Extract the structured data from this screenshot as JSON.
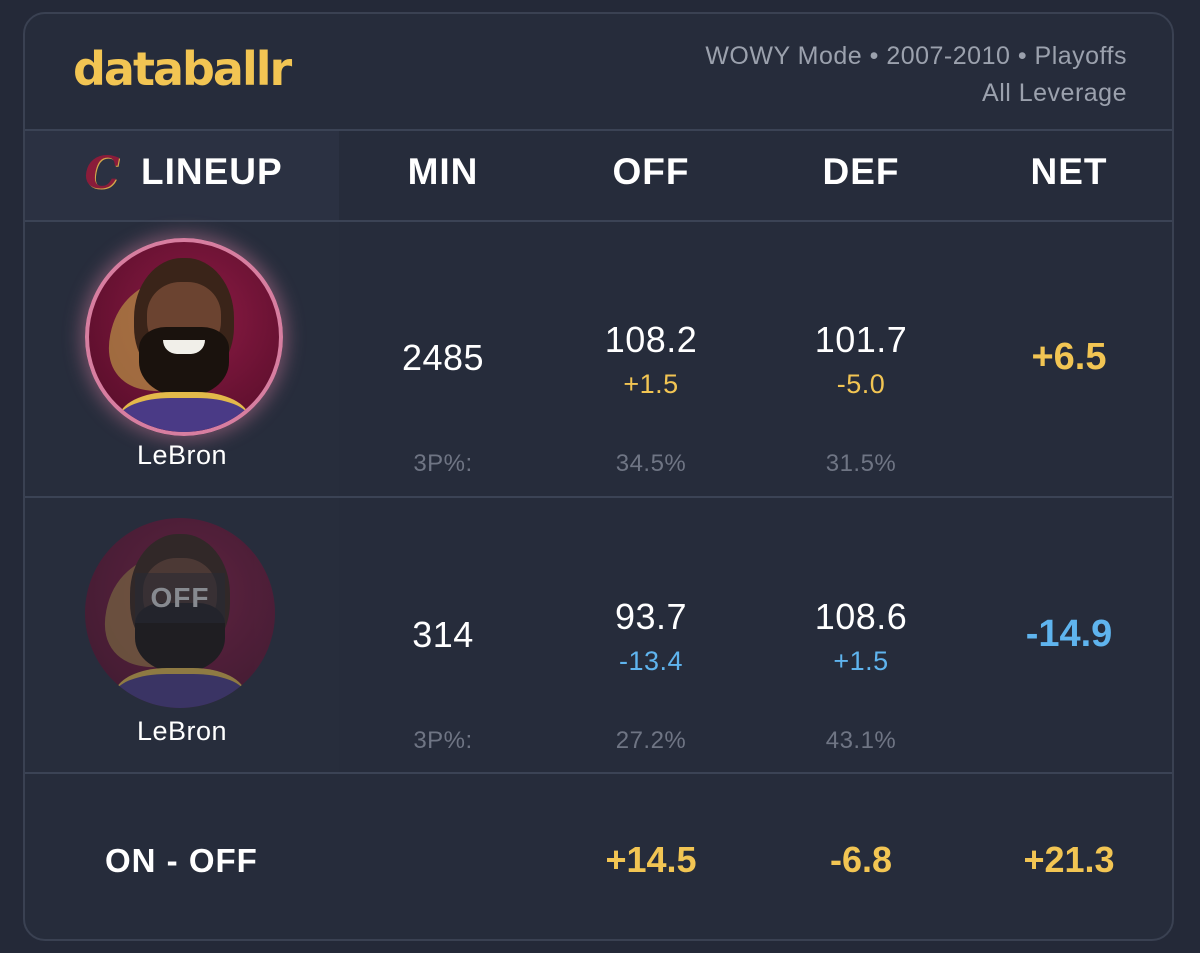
{
  "brand": {
    "name": "databallr"
  },
  "filters": {
    "line1": "WOWY Mode • 2007-2010 • Playoffs",
    "line2": "All Leverage"
  },
  "columns": {
    "lineup": "LINEUP",
    "min": "MIN",
    "off": "OFF",
    "def": "DEF",
    "net": "NET"
  },
  "team_logo": "cavaliers-c-logo-icon",
  "rows": [
    {
      "player": "LeBron",
      "status": "on",
      "min": "2485",
      "off": "108.2",
      "off_delta": "+1.5",
      "def": "101.7",
      "def_delta": "-5.0",
      "net": "+6.5",
      "three_label": "3P%:",
      "off_3p": "34.5%",
      "def_3p": "31.5%"
    },
    {
      "player": "LeBron",
      "status": "off",
      "badge": "OFF",
      "min": "314",
      "off": "93.7",
      "off_delta": "-13.4",
      "def": "108.6",
      "def_delta": "+1.5",
      "net": "-14.9",
      "three_label": "3P%:",
      "off_3p": "27.2%",
      "def_3p": "43.1%"
    }
  ],
  "summary": {
    "label": "ON - OFF",
    "off": "+14.5",
    "def": "-6.8",
    "net": "+21.3"
  },
  "colors": {
    "background": "#242938",
    "brand": "#f2c553",
    "positive": "#f2c553",
    "negative": "#5fb4ee",
    "muted": "#6f7584"
  }
}
